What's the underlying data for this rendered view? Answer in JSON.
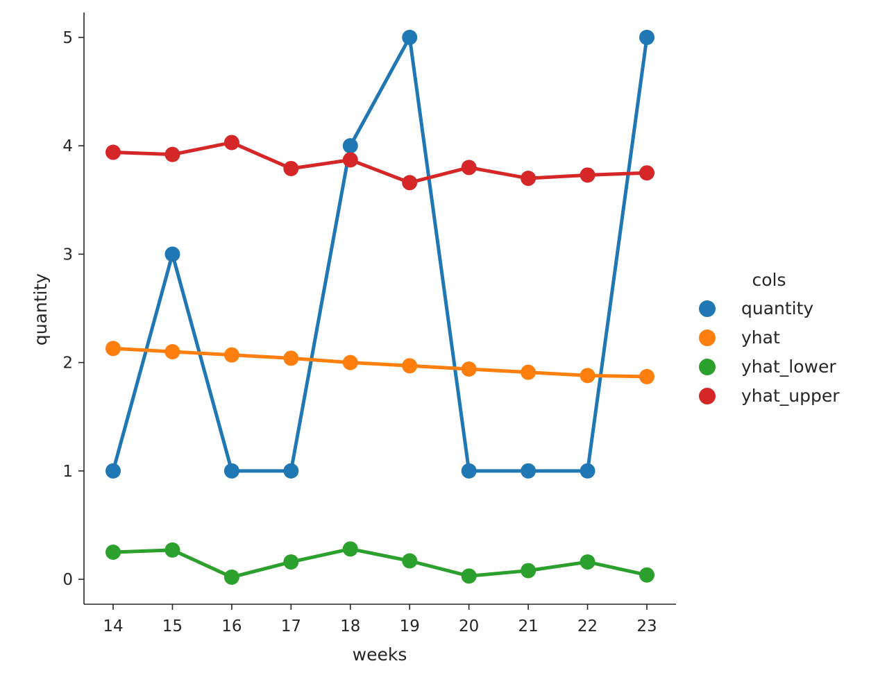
{
  "chart_data": {
    "type": "line",
    "xlabel": "weeks",
    "ylabel": "quantity",
    "categories": [
      "14",
      "15",
      "16",
      "17",
      "18",
      "19",
      "20",
      "21",
      "22",
      "23"
    ],
    "ylim": [
      -0.23,
      5.23
    ],
    "yticks": [
      "0",
      "1",
      "2",
      "3",
      "4",
      "5"
    ],
    "grid": false,
    "legend": {
      "title": "cols",
      "placement": "right"
    },
    "series": [
      {
        "name": "quantity",
        "color": "#1f77b4",
        "values": [
          1,
          3,
          1,
          1,
          4,
          5,
          1,
          1,
          1,
          5
        ]
      },
      {
        "name": "yhat",
        "color": "#ff7f0e",
        "values": [
          2.13,
          2.1,
          2.07,
          2.04,
          2.0,
          1.97,
          1.94,
          1.91,
          1.88,
          1.87
        ]
      },
      {
        "name": "yhat_lower",
        "color": "#2ca02c",
        "values": [
          0.25,
          0.27,
          0.02,
          0.16,
          0.28,
          0.17,
          0.03,
          0.08,
          0.16,
          0.04
        ]
      },
      {
        "name": "yhat_upper",
        "color": "#d62728",
        "values": [
          3.94,
          3.92,
          4.03,
          3.79,
          3.87,
          3.66,
          3.8,
          3.7,
          3.73,
          3.75
        ]
      }
    ]
  }
}
